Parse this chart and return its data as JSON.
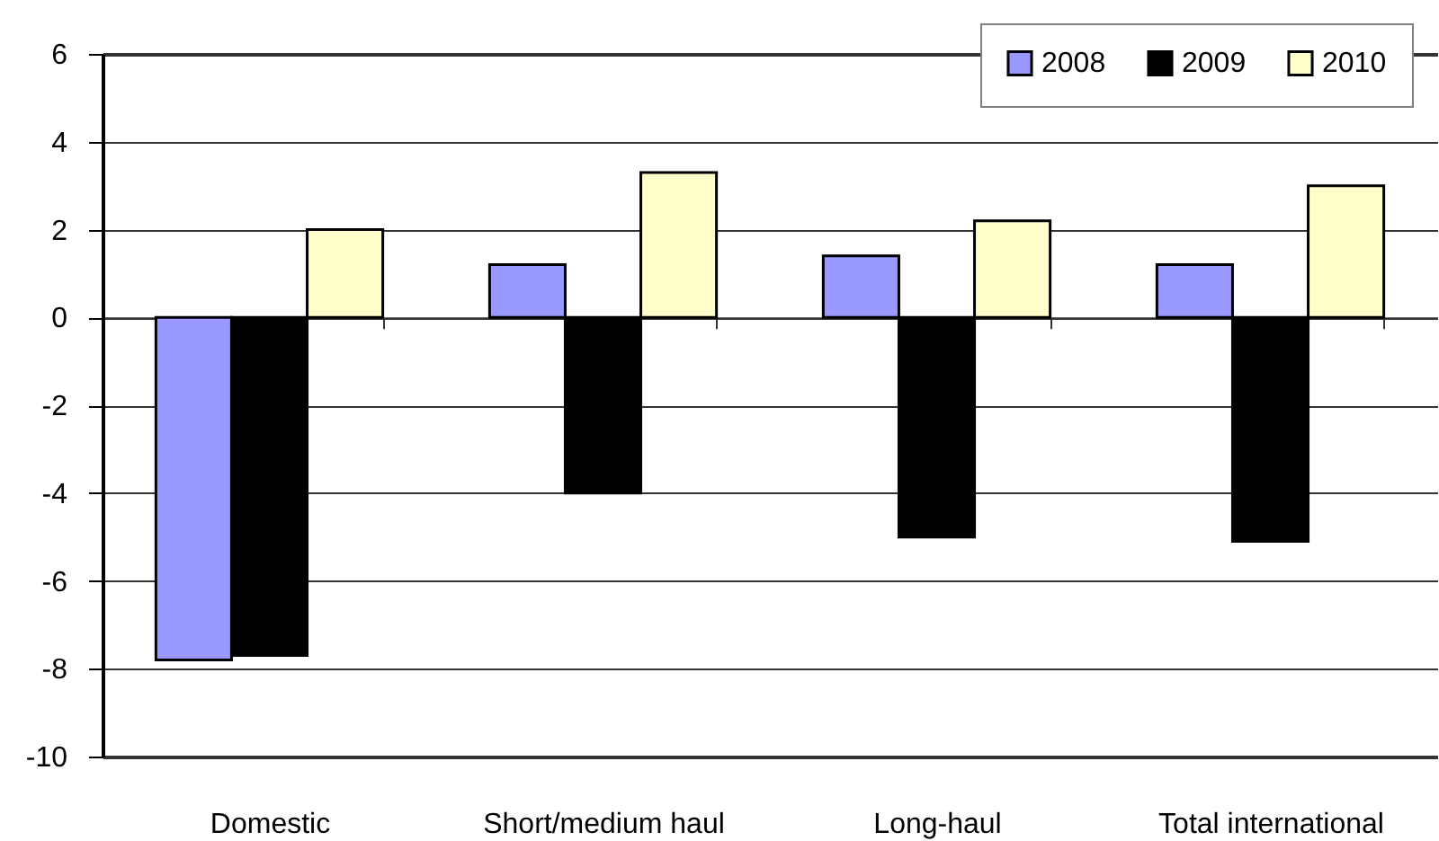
{
  "chart_data": {
    "type": "bar",
    "categories": [
      "Domestic",
      "Short/medium haul",
      "Long-haul",
      "Total international"
    ],
    "series": [
      {
        "name": "2008",
        "color": "#9999ff",
        "values": [
          -7.8,
          1.2,
          1.4,
          1.2
        ]
      },
      {
        "name": "2009",
        "color": "#000000",
        "values": [
          -7.7,
          -4.0,
          -5.0,
          -5.1
        ]
      },
      {
        "name": "2010",
        "color": "#ffffcc",
        "values": [
          2.0,
          3.3,
          2.2,
          3.0
        ]
      }
    ],
    "ylim": [
      -10,
      6
    ],
    "yticks": [
      -10,
      -8,
      -6,
      -4,
      -2,
      0,
      2,
      4,
      6
    ],
    "grid": "y",
    "legend": "top right"
  }
}
